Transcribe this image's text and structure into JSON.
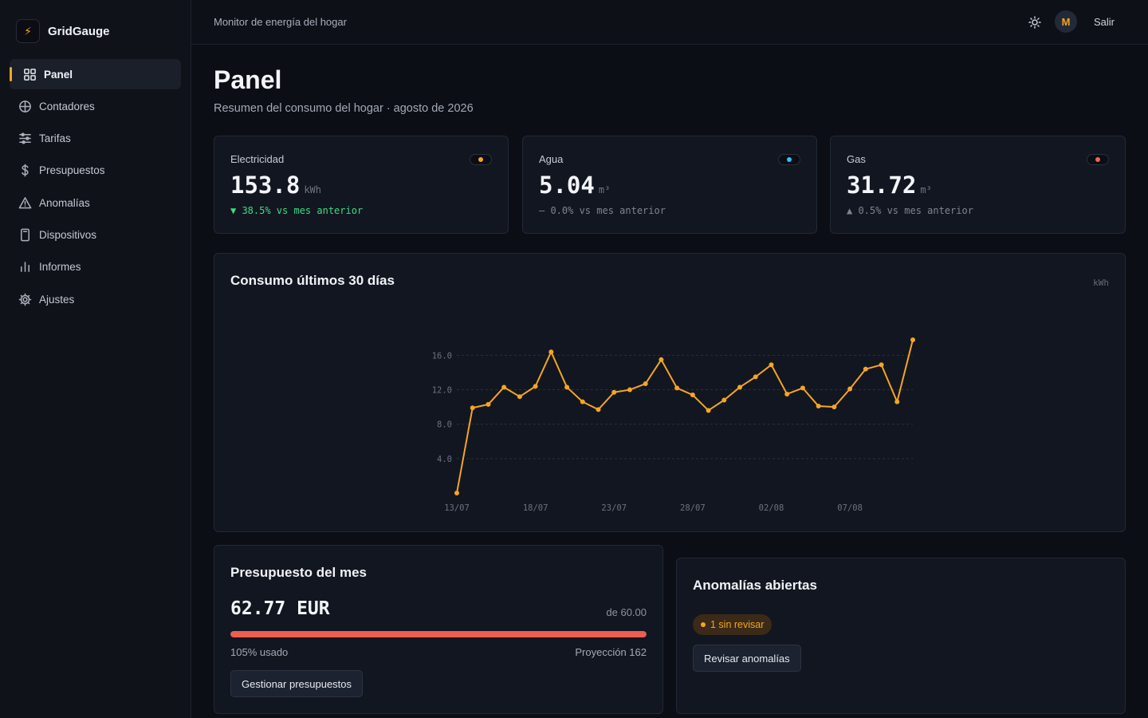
{
  "app": {
    "name": "GridGauge",
    "logo_glyph": "⚡"
  },
  "sidebar": {
    "items": [
      {
        "label": "Panel",
        "icon": "grid-icon",
        "active": true
      },
      {
        "label": "Contadores",
        "icon": "globe-icon"
      },
      {
        "label": "Tarifas",
        "icon": "sliders-icon"
      },
      {
        "label": "Presupuestos",
        "icon": "dollar-icon"
      },
      {
        "label": "Anomalías",
        "icon": "warning-triangle-icon"
      },
      {
        "label": "Dispositivos",
        "icon": "device-icon"
      },
      {
        "label": "Informes",
        "icon": "bar-chart-icon"
      },
      {
        "label": "Ajustes",
        "icon": "gear-icon"
      }
    ]
  },
  "topbar": {
    "title": "Monitor de energía del hogar",
    "avatar_initial": "M",
    "logout_label": "Salir"
  },
  "page": {
    "title": "Panel",
    "subtitle": "Resumen del consumo del hogar · agosto de 2026"
  },
  "stats": [
    {
      "label": "Electricidad",
      "value": "153.8",
      "unit": "kWh",
      "change": "▼ 38.5% vs mes anterior",
      "change_color": "#3ddc84",
      "dot_color": "#f5a524"
    },
    {
      "label": "Agua",
      "value": "5.04",
      "unit": "m³",
      "change": "— 0.0% vs mes anterior",
      "change_color": "#7d8491",
      "dot_color": "#38bdf8"
    },
    {
      "label": "Gas",
      "value": "31.72",
      "unit": "m³",
      "change": "▲ 0.5% vs mes anterior",
      "change_color": "#7d8491",
      "dot_color": "#f0684f"
    }
  ],
  "chart": {
    "title": "Consumo últimos 30 días",
    "unit_label": "kWh"
  },
  "chart_data": {
    "type": "line",
    "x": [
      "13/07",
      "14/07",
      "15/07",
      "16/07",
      "17/07",
      "18/07",
      "19/07",
      "20/07",
      "21/07",
      "22/07",
      "23/07",
      "24/07",
      "25/07",
      "26/07",
      "27/07",
      "28/07",
      "29/07",
      "30/07",
      "31/07",
      "01/08",
      "02/08",
      "03/08",
      "04/08",
      "05/08",
      "06/08",
      "07/08",
      "08/08",
      "09/08",
      "10/08",
      "11/08"
    ],
    "series": [
      {
        "values": [
          0.0,
          9.9,
          10.3,
          12.3,
          11.2,
          12.4,
          16.4,
          12.3,
          10.6,
          9.7,
          11.7,
          12.0,
          12.7,
          15.5,
          12.2,
          11.4,
          9.6,
          10.8,
          12.3,
          13.5,
          14.9,
          11.5,
          12.2,
          10.1,
          10.0,
          12.1,
          14.4,
          14.9,
          10.6,
          17.8
        ],
        "color": "#f5a524"
      }
    ],
    "y_ticks": [
      "4.0",
      "8.0",
      "12.0",
      "16.0"
    ],
    "x_ticks": [
      "13/07",
      "18/07",
      "23/07",
      "28/07",
      "02/08",
      "07/08"
    ],
    "ylim": [
      0,
      17.8
    ],
    "grid": true
  },
  "budget": {
    "title": "Presupuesto del mes",
    "amount": "62.77 EUR",
    "of_label": "de 60.00",
    "used_fraction": 1.0,
    "used_label": "105% usado",
    "projection_label": "Proyección 162",
    "button_label": "Gestionar presupuestos"
  },
  "anomalies": {
    "title": "Anomalías abiertas",
    "badge_label": "1 sin revisar",
    "button_label": "Revisar anomalías"
  }
}
